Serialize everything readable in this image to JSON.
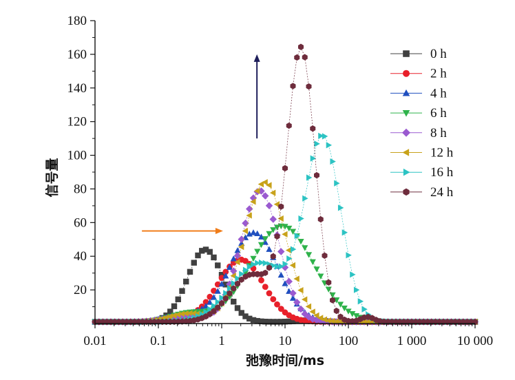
{
  "chart_data": {
    "type": "scatter",
    "title": "",
    "xlabel": "弛豫时间/ms",
    "ylabel": "信号量",
    "x_scale": "log",
    "xlim": [
      0.01,
      10000
    ],
    "ylim": [
      0,
      180
    ],
    "x_ticks": [
      0.01,
      0.1,
      1,
      10,
      100,
      1000,
      10000
    ],
    "x_tick_labels": [
      "0.01",
      "0.1",
      "1",
      "10",
      "100",
      "1 000",
      "10 000"
    ],
    "y_ticks": [
      20,
      40,
      60,
      80,
      100,
      120,
      140,
      160,
      180
    ],
    "y_tick_labels": [
      "20",
      "40",
      "60",
      "80",
      "100",
      "120",
      "140",
      "160",
      "180"
    ],
    "grid": false,
    "legend_position": "top-right",
    "series": [
      {
        "name": "0 h",
        "color": "#404040",
        "marker": "square",
        "peaks": [
          {
            "center": 0.55,
            "height": 43,
            "width": 0.28
          },
          {
            "center": 25,
            "height": 1,
            "width": 0.2
          }
        ]
      },
      {
        "name": "2 h",
        "color": "#e8202a",
        "marker": "circle",
        "peaks": [
          {
            "center": 2.0,
            "height": 37,
            "width": 0.36
          },
          {
            "center": 0.18,
            "height": 2,
            "width": 0.25
          }
        ]
      },
      {
        "name": "4 h",
        "color": "#1f4fbf",
        "marker": "triangle-up",
        "peaks": [
          {
            "center": 3.2,
            "height": 53,
            "width": 0.38
          },
          {
            "center": 0.25,
            "height": 4,
            "width": 0.3
          }
        ]
      },
      {
        "name": "6 h",
        "color": "#2eb24a",
        "marker": "triangle-down",
        "peaks": [
          {
            "center": 9.0,
            "height": 57,
            "width": 0.5
          },
          {
            "center": 0.3,
            "height": 5,
            "width": 0.3
          }
        ]
      },
      {
        "name": "8 h",
        "color": "#9a5ad0",
        "marker": "diamond",
        "peaks": [
          {
            "center": 4.0,
            "height": 78,
            "width": 0.3
          },
          {
            "center": 0.3,
            "height": 4,
            "width": 0.3
          }
        ]
      },
      {
        "name": "12 h",
        "color": "#c8a21a",
        "marker": "triangle-left",
        "peaks": [
          {
            "center": 4.8,
            "height": 83,
            "width": 0.33
          },
          {
            "center": 0.3,
            "height": 5,
            "width": 0.3
          }
        ]
      },
      {
        "name": "16 h",
        "color": "#2cc3c3",
        "marker": "triangle-right",
        "peaks": [
          {
            "center": 40,
            "height": 108,
            "width": 0.28
          },
          {
            "center": 4.0,
            "height": 35,
            "width": 0.45
          }
        ]
      },
      {
        "name": "24 h",
        "color": "#6e2c3c",
        "marker": "hexagon",
        "peaks": [
          {
            "center": 18,
            "height": 161,
            "width": 0.22
          },
          {
            "center": 3.0,
            "height": 28,
            "width": 0.35
          },
          {
            "center": 200,
            "height": 3,
            "width": 0.1
          }
        ]
      }
    ],
    "annotations": [
      {
        "type": "arrow-right",
        "color": "#f07d1a",
        "x_from": 0.055,
        "x_to": 1.05,
        "y": 55
      },
      {
        "type": "arrow-up",
        "color": "#1e1e5a",
        "x": 3.6,
        "y_from": 110,
        "y_to": 160
      }
    ]
  }
}
